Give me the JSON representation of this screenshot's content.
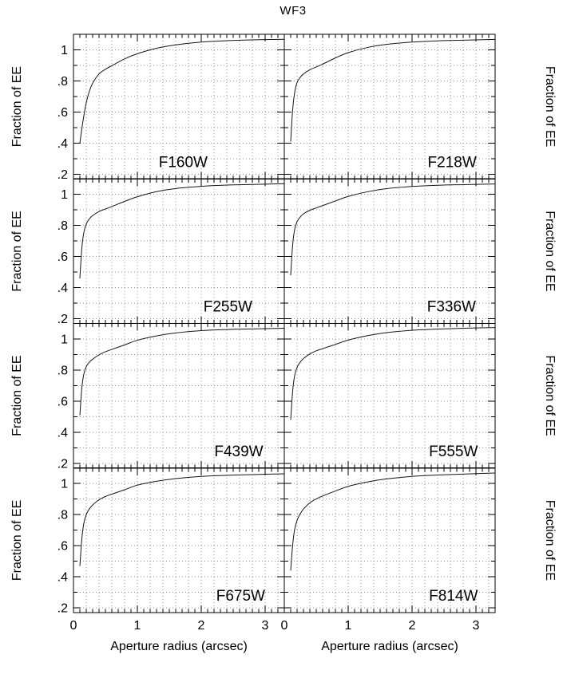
{
  "title": "WF3",
  "chart_data": {
    "type": "line",
    "title": "WF3",
    "xlabel": "Aperture radius (arcsec)",
    "ylabel": "Fraction of EE",
    "xlim": [
      0,
      3.3
    ],
    "ylim": [
      0.17,
      1.1
    ],
    "grid": "dotted",
    "legend": "none",
    "layout": "4 rows x 2 columns, shared axes",
    "x_major_ticks": [
      0,
      1,
      2,
      3
    ],
    "y_major_ticks": [
      0.2,
      0.4,
      0.6,
      0.8,
      1.0
    ],
    "y_tick_labels": [
      ".2",
      ".4",
      ".6",
      ".8",
      "1"
    ],
    "x": [
      0.1,
      0.13,
      0.16,
      0.2,
      0.25,
      0.3,
      0.4,
      0.5,
      0.6,
      0.8,
      1.0,
      1.3,
      1.6,
      2.0,
      2.4,
      2.8,
      3.3
    ],
    "panels": [
      {
        "filter": "F160W",
        "row": 0,
        "col": 0,
        "label_anchor_x": 2.1,
        "ee": [
          0.4,
          0.49,
          0.57,
          0.66,
          0.735,
          0.785,
          0.845,
          0.875,
          0.898,
          0.942,
          0.975,
          1.01,
          1.032,
          1.05,
          1.059,
          1.064,
          1.068
        ]
      },
      {
        "filter": "F218W",
        "row": 0,
        "col": 1,
        "label_anchor_x": 3.01,
        "ee": [
          0.41,
          0.61,
          0.72,
          0.79,
          0.823,
          0.845,
          0.872,
          0.89,
          0.908,
          0.948,
          0.982,
          1.015,
          1.035,
          1.05,
          1.058,
          1.062,
          1.067
        ]
      },
      {
        "filter": "F255W",
        "row": 1,
        "col": 0,
        "label_anchor_x": 2.8,
        "ee": [
          0.46,
          0.65,
          0.75,
          0.81,
          0.843,
          0.864,
          0.89,
          0.906,
          0.922,
          0.955,
          0.985,
          1.018,
          1.038,
          1.052,
          1.06,
          1.064,
          1.069
        ]
      },
      {
        "filter": "F336W",
        "row": 1,
        "col": 1,
        "label_anchor_x": 3.0,
        "ee": [
          0.48,
          0.67,
          0.77,
          0.825,
          0.855,
          0.875,
          0.898,
          0.913,
          0.928,
          0.958,
          0.987,
          1.017,
          1.037,
          1.051,
          1.059,
          1.063,
          1.067
        ]
      },
      {
        "filter": "F439W",
        "row": 2,
        "col": 0,
        "label_anchor_x": 2.97,
        "ee": [
          0.51,
          0.68,
          0.77,
          0.822,
          0.851,
          0.87,
          0.898,
          0.918,
          0.933,
          0.962,
          0.992,
          1.02,
          1.039,
          1.054,
          1.061,
          1.065,
          1.069
        ]
      },
      {
        "filter": "F555W",
        "row": 2,
        "col": 1,
        "label_anchor_x": 3.03,
        "ee": [
          0.48,
          0.66,
          0.76,
          0.818,
          0.851,
          0.874,
          0.904,
          0.924,
          0.938,
          0.965,
          0.993,
          1.021,
          1.041,
          1.056,
          1.064,
          1.069,
          1.074
        ]
      },
      {
        "filter": "F675W",
        "row": 3,
        "col": 0,
        "label_anchor_x": 3.0,
        "ee": [
          0.47,
          0.64,
          0.74,
          0.8,
          0.838,
          0.862,
          0.896,
          0.917,
          0.932,
          0.96,
          0.99,
          1.015,
          1.032,
          1.046,
          1.053,
          1.058,
          1.063
        ]
      },
      {
        "filter": "F814W",
        "row": 3,
        "col": 1,
        "label_anchor_x": 3.03,
        "ee": [
          0.44,
          0.6,
          0.7,
          0.763,
          0.806,
          0.836,
          0.876,
          0.901,
          0.92,
          0.952,
          0.982,
          1.01,
          1.03,
          1.046,
          1.055,
          1.061,
          1.068
        ]
      }
    ],
    "colors": {
      "background": "#ffffff",
      "axis": "#000000",
      "grid": "#8f8f8f",
      "curve": "#151515",
      "text": "#000000"
    }
  }
}
